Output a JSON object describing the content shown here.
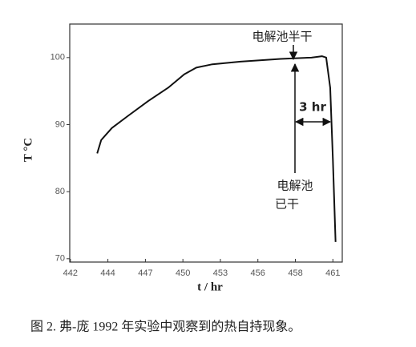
{
  "chart_data": {
    "type": "line",
    "x_label": "t / hr",
    "y_label": "T °C",
    "x": [
      443.6,
      443.9,
      444.7,
      445.9,
      447.4,
      448.9,
      450.1,
      451.0,
      452.2,
      454.3,
      457.3,
      459.6,
      460.4,
      460.7,
      461.0,
      461.2,
      461.4
    ],
    "values": [
      85.7,
      87.7,
      89.5,
      91.3,
      93.5,
      95.5,
      97.5,
      98.5,
      99.0,
      99.4,
      99.8,
      100.0,
      100.2,
      100.0,
      95.5,
      84.8,
      72.5
    ],
    "color": "#111111",
    "xlim": [
      441.55,
      461.9
    ],
    "ylim": [
      69.5,
      105
    ],
    "xticks": [
      {
        "value": 441.6,
        "label": "442"
      },
      {
        "value": 444.4,
        "label": "444"
      },
      {
        "value": 447.2,
        "label": "447"
      },
      {
        "value": 450.0,
        "label": "450"
      },
      {
        "value": 452.8,
        "label": "453"
      },
      {
        "value": 455.6,
        "label": "456"
      },
      {
        "value": 458.4,
        "label": "458"
      },
      {
        "value": 461.2,
        "label": "461"
      }
    ],
    "yticks": [
      70,
      80,
      90,
      100
    ],
    "annotations": [
      "电解池半干",
      "电解池",
      "已干",
      "3 hr"
    ],
    "caption": "图 2. 弗-庞 1992 年实验中观察到的热自持现象。"
  }
}
